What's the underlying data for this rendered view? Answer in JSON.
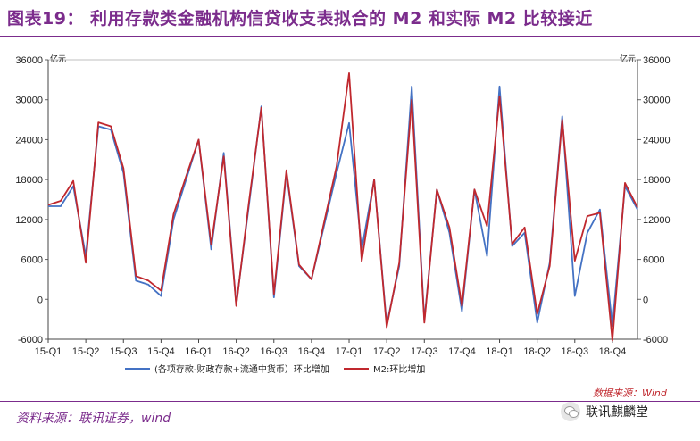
{
  "header": {
    "title": "图表19：  利用存款类金融机构信贷收支表拟合的 M2 和实际 M2 比较接近"
  },
  "chart_data": {
    "type": "line",
    "left_unit": "亿元",
    "right_unit": "亿元",
    "ylim": [
      -6000,
      36000
    ],
    "y_ticks": [
      -6000,
      0,
      6000,
      12000,
      18000,
      24000,
      30000,
      36000
    ],
    "x_tick_labels": [
      "15-Q1",
      "15-Q2",
      "15-Q3",
      "15-Q4",
      "16-Q1",
      "16-Q2",
      "16-Q3",
      "16-Q4",
      "17-Q1",
      "17-Q2",
      "17-Q3",
      "17-Q4",
      "18-Q1",
      "18-Q2",
      "18-Q3",
      "18-Q4"
    ],
    "x": [
      "2015-01",
      "2015-02",
      "2015-03",
      "2015-04",
      "2015-05",
      "2015-06",
      "2015-07",
      "2015-08",
      "2015-09",
      "2015-10",
      "2015-11",
      "2015-12",
      "2016-01",
      "2016-02",
      "2016-03",
      "2016-04",
      "2016-05",
      "2016-06",
      "2016-07",
      "2016-08",
      "2016-09",
      "2016-10",
      "2016-11",
      "2016-12",
      "2017-01",
      "2017-02",
      "2017-03",
      "2017-04",
      "2017-05",
      "2017-06",
      "2017-07",
      "2017-08",
      "2017-09",
      "2017-10",
      "2017-11",
      "2017-12",
      "2018-01",
      "2018-02",
      "2018-03",
      "2018-04",
      "2018-05",
      "2018-06",
      "2018-07",
      "2018-08",
      "2018-09",
      "2018-10",
      "2018-11",
      "2018-12"
    ],
    "series": [
      {
        "name": "(各项存款-财政存款+流通中货币）环比增加",
        "color": "#4472c4",
        "values": [
          14000,
          14000,
          17000,
          6500,
          26000,
          25500,
          19000,
          2800,
          2200,
          500,
          12000,
          18000,
          24000,
          7500,
          22000,
          -800,
          14000,
          29000,
          300,
          19000,
          5000,
          3000,
          11000,
          19000,
          26500,
          7500,
          18000,
          -3800,
          5000,
          32000,
          -3200,
          16500,
          10000,
          -1800,
          16500,
          6500,
          32000,
          8000,
          10000,
          -3500,
          5500,
          27500,
          500,
          10000,
          13500,
          -4000,
          17000,
          13500
        ]
      },
      {
        "name": "M2:环比增加",
        "color": "#c0282e",
        "values": [
          14200,
          14800,
          17800,
          5500,
          26600,
          26000,
          19700,
          3500,
          2800,
          1300,
          12800,
          18500,
          24000,
          8200,
          21500,
          -1000,
          14500,
          28800,
          800,
          19400,
          5200,
          3000,
          11500,
          20000,
          34000,
          5700,
          18000,
          -4200,
          5500,
          30000,
          -3500,
          16500,
          10800,
          -1000,
          16500,
          11000,
          30500,
          8300,
          10800,
          -2200,
          5000,
          27000,
          5800,
          12500,
          13000,
          -6200,
          17500,
          13800
        ]
      }
    ]
  },
  "legend": {
    "series_1": "(各项存款-财政存款+流通中货币）环比增加",
    "series_2": "M2:环比增加"
  },
  "footer": {
    "data_source_note": "数据来源：Wind",
    "source": "资料来源：联讯证券，wind",
    "account": "联讯麒麟堂"
  }
}
